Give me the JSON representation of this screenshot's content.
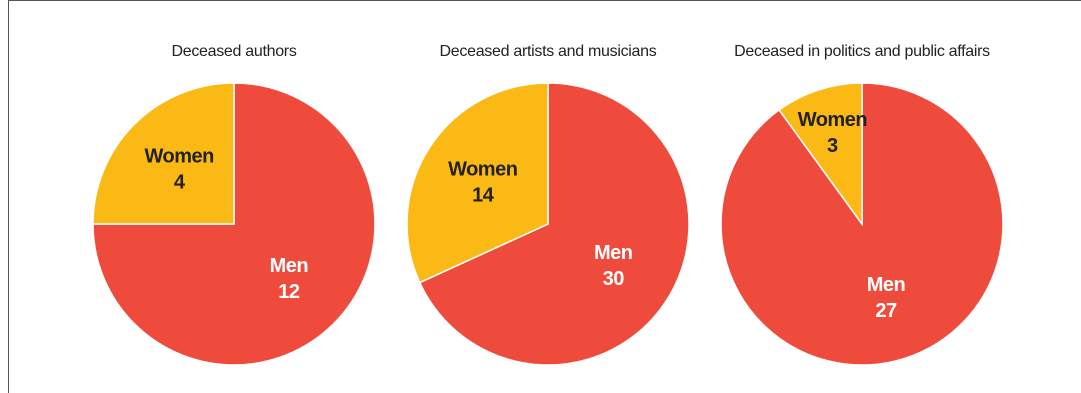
{
  "chart_data": [
    {
      "type": "pie",
      "title": "Deceased authors",
      "categories": [
        "Men",
        "Women"
      ],
      "values": [
        12,
        4
      ],
      "colors": [
        "#ef4b3d",
        "#fbb916"
      ],
      "label_colors": [
        "#ffffff",
        "#222222"
      ]
    },
    {
      "type": "pie",
      "title": "Deceased artists and musicians",
      "categories": [
        "Men",
        "Women"
      ],
      "values": [
        30,
        14
      ],
      "colors": [
        "#ef4b3d",
        "#fbb916"
      ],
      "label_colors": [
        "#ffffff",
        "#222222"
      ]
    },
    {
      "type": "pie",
      "title": "Deceased in politics and public affairs",
      "categories": [
        "Men",
        "Women"
      ],
      "values": [
        27,
        3
      ],
      "colors": [
        "#ef4b3d",
        "#fbb916"
      ],
      "label_colors": [
        "#ffffff",
        "#222222"
      ]
    }
  ]
}
